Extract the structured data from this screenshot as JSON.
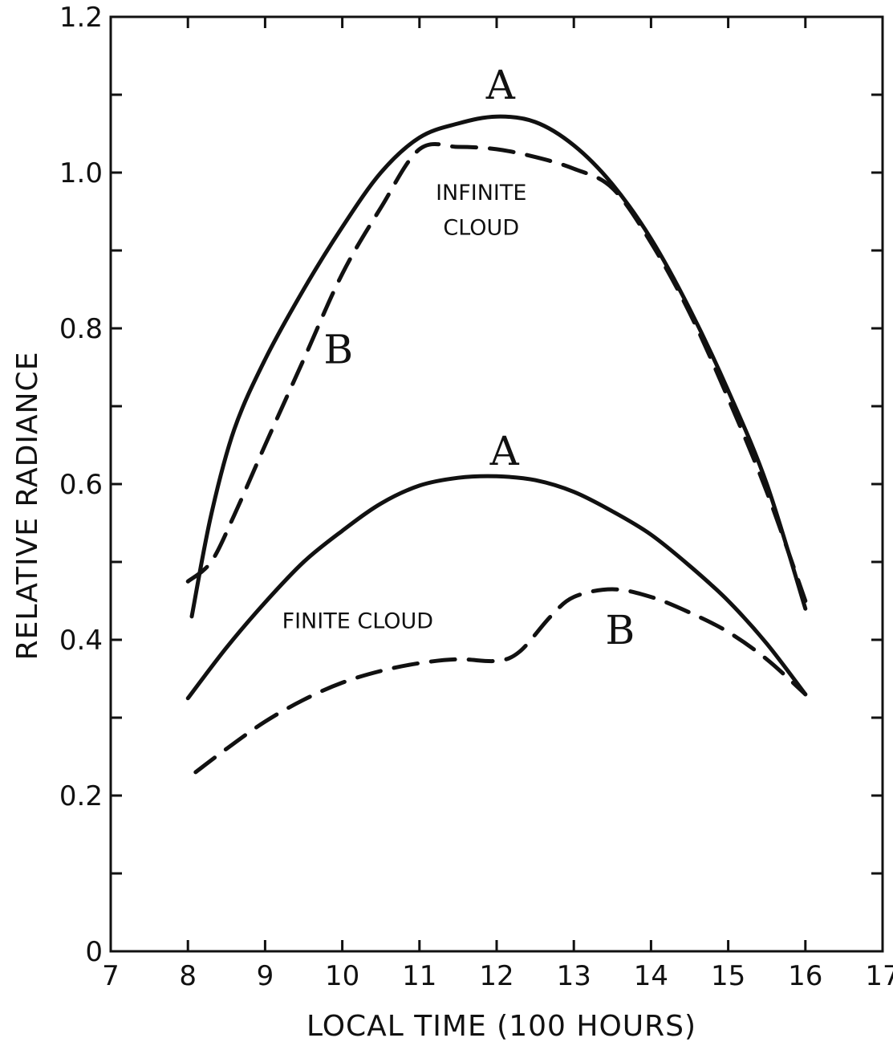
{
  "chart_data": {
    "type": "line",
    "title": "",
    "xlabel": "LOCAL TIME  (100 HOURS)",
    "ylabel": "RELATIVE RADIANCE",
    "xlim": [
      7,
      17
    ],
    "ylim": [
      0,
      1.2
    ],
    "grid": false,
    "x_ticks": [
      7,
      8,
      9,
      10,
      11,
      12,
      13,
      14,
      15,
      16,
      17
    ],
    "y_ticks": [
      0,
      0.1,
      0.2,
      0.3,
      0.4,
      0.5,
      0.6,
      0.7,
      0.8,
      0.9,
      1.0,
      1.1,
      1.2
    ],
    "y_tick_labels": [
      {
        "value": 0,
        "label": "0"
      },
      {
        "value": 0.2,
        "label": "0.2"
      },
      {
        "value": 0.4,
        "label": "0.4"
      },
      {
        "value": 0.6,
        "label": "0.6"
      },
      {
        "value": 0.8,
        "label": "0.8"
      },
      {
        "value": 1.0,
        "label": "1.0"
      },
      {
        "value": 1.2,
        "label": "1.2"
      }
    ],
    "series": [
      {
        "name": "A",
        "group": "INFINITE CLOUD",
        "style": "solid",
        "points": [
          [
            8.05,
            0.43
          ],
          [
            8.3,
            0.56
          ],
          [
            8.6,
            0.67
          ],
          [
            9.0,
            0.76
          ],
          [
            9.5,
            0.85
          ],
          [
            10.0,
            0.93
          ],
          [
            10.5,
            1.0
          ],
          [
            11.0,
            1.045
          ],
          [
            11.5,
            1.063
          ],
          [
            12.0,
            1.072
          ],
          [
            12.5,
            1.065
          ],
          [
            13.0,
            1.035
          ],
          [
            13.5,
            0.985
          ],
          [
            14.0,
            0.915
          ],
          [
            14.5,
            0.825
          ],
          [
            15.0,
            0.72
          ],
          [
            15.5,
            0.6
          ],
          [
            16.0,
            0.44
          ]
        ],
        "label_at": [
          12.05,
          1.095
        ]
      },
      {
        "name": "B",
        "group": "INFINITE CLOUD",
        "style": "dashed",
        "points": [
          [
            8.0,
            0.475
          ],
          [
            8.3,
            0.5
          ],
          [
            8.6,
            0.56
          ],
          [
            9.0,
            0.65
          ],
          [
            9.5,
            0.76
          ],
          [
            10.0,
            0.87
          ],
          [
            10.5,
            0.955
          ],
          [
            11.0,
            1.03
          ],
          [
            11.5,
            1.033
          ],
          [
            12.0,
            1.03
          ],
          [
            12.5,
            1.02
          ],
          [
            13.0,
            1.005
          ],
          [
            13.5,
            0.98
          ],
          [
            14.0,
            0.91
          ],
          [
            14.5,
            0.82
          ],
          [
            15.0,
            0.71
          ],
          [
            15.5,
            0.59
          ],
          [
            16.0,
            0.45
          ]
        ],
        "label_at": [
          9.95,
          0.755
        ]
      },
      {
        "name": "A",
        "group": "FINITE CLOUD",
        "style": "solid",
        "points": [
          [
            8.0,
            0.325
          ],
          [
            8.5,
            0.39
          ],
          [
            9.0,
            0.448
          ],
          [
            9.5,
            0.5
          ],
          [
            10.0,
            0.54
          ],
          [
            10.5,
            0.575
          ],
          [
            11.0,
            0.598
          ],
          [
            11.5,
            0.608
          ],
          [
            12.0,
            0.61
          ],
          [
            12.5,
            0.605
          ],
          [
            13.0,
            0.59
          ],
          [
            13.5,
            0.565
          ],
          [
            14.0,
            0.535
          ],
          [
            14.5,
            0.495
          ],
          [
            15.0,
            0.45
          ],
          [
            15.5,
            0.395
          ],
          [
            16.0,
            0.33
          ]
        ],
        "label_at": [
          12.1,
          0.625
        ]
      },
      {
        "name": "B",
        "group": "FINITE CLOUD",
        "style": "dashed",
        "points": [
          [
            8.1,
            0.23
          ],
          [
            8.5,
            0.26
          ],
          [
            9.0,
            0.295
          ],
          [
            9.5,
            0.323
          ],
          [
            10.0,
            0.345
          ],
          [
            10.5,
            0.36
          ],
          [
            11.0,
            0.37
          ],
          [
            11.5,
            0.375
          ],
          [
            12.0,
            0.373
          ],
          [
            12.3,
            0.385
          ],
          [
            12.7,
            0.43
          ],
          [
            13.0,
            0.455
          ],
          [
            13.5,
            0.465
          ],
          [
            14.0,
            0.455
          ],
          [
            14.5,
            0.435
          ],
          [
            15.0,
            0.41
          ],
          [
            15.5,
            0.375
          ],
          [
            16.0,
            0.33
          ]
        ],
        "label_at": [
          13.6,
          0.395
        ]
      }
    ],
    "annotations": [
      {
        "text": "INFINITE",
        "at": [
          11.8,
          0.965
        ]
      },
      {
        "text": "CLOUD",
        "at": [
          11.8,
          0.92
        ]
      },
      {
        "text": "FINITE CLOUD",
        "at": [
          10.2,
          0.415
        ]
      }
    ]
  }
}
